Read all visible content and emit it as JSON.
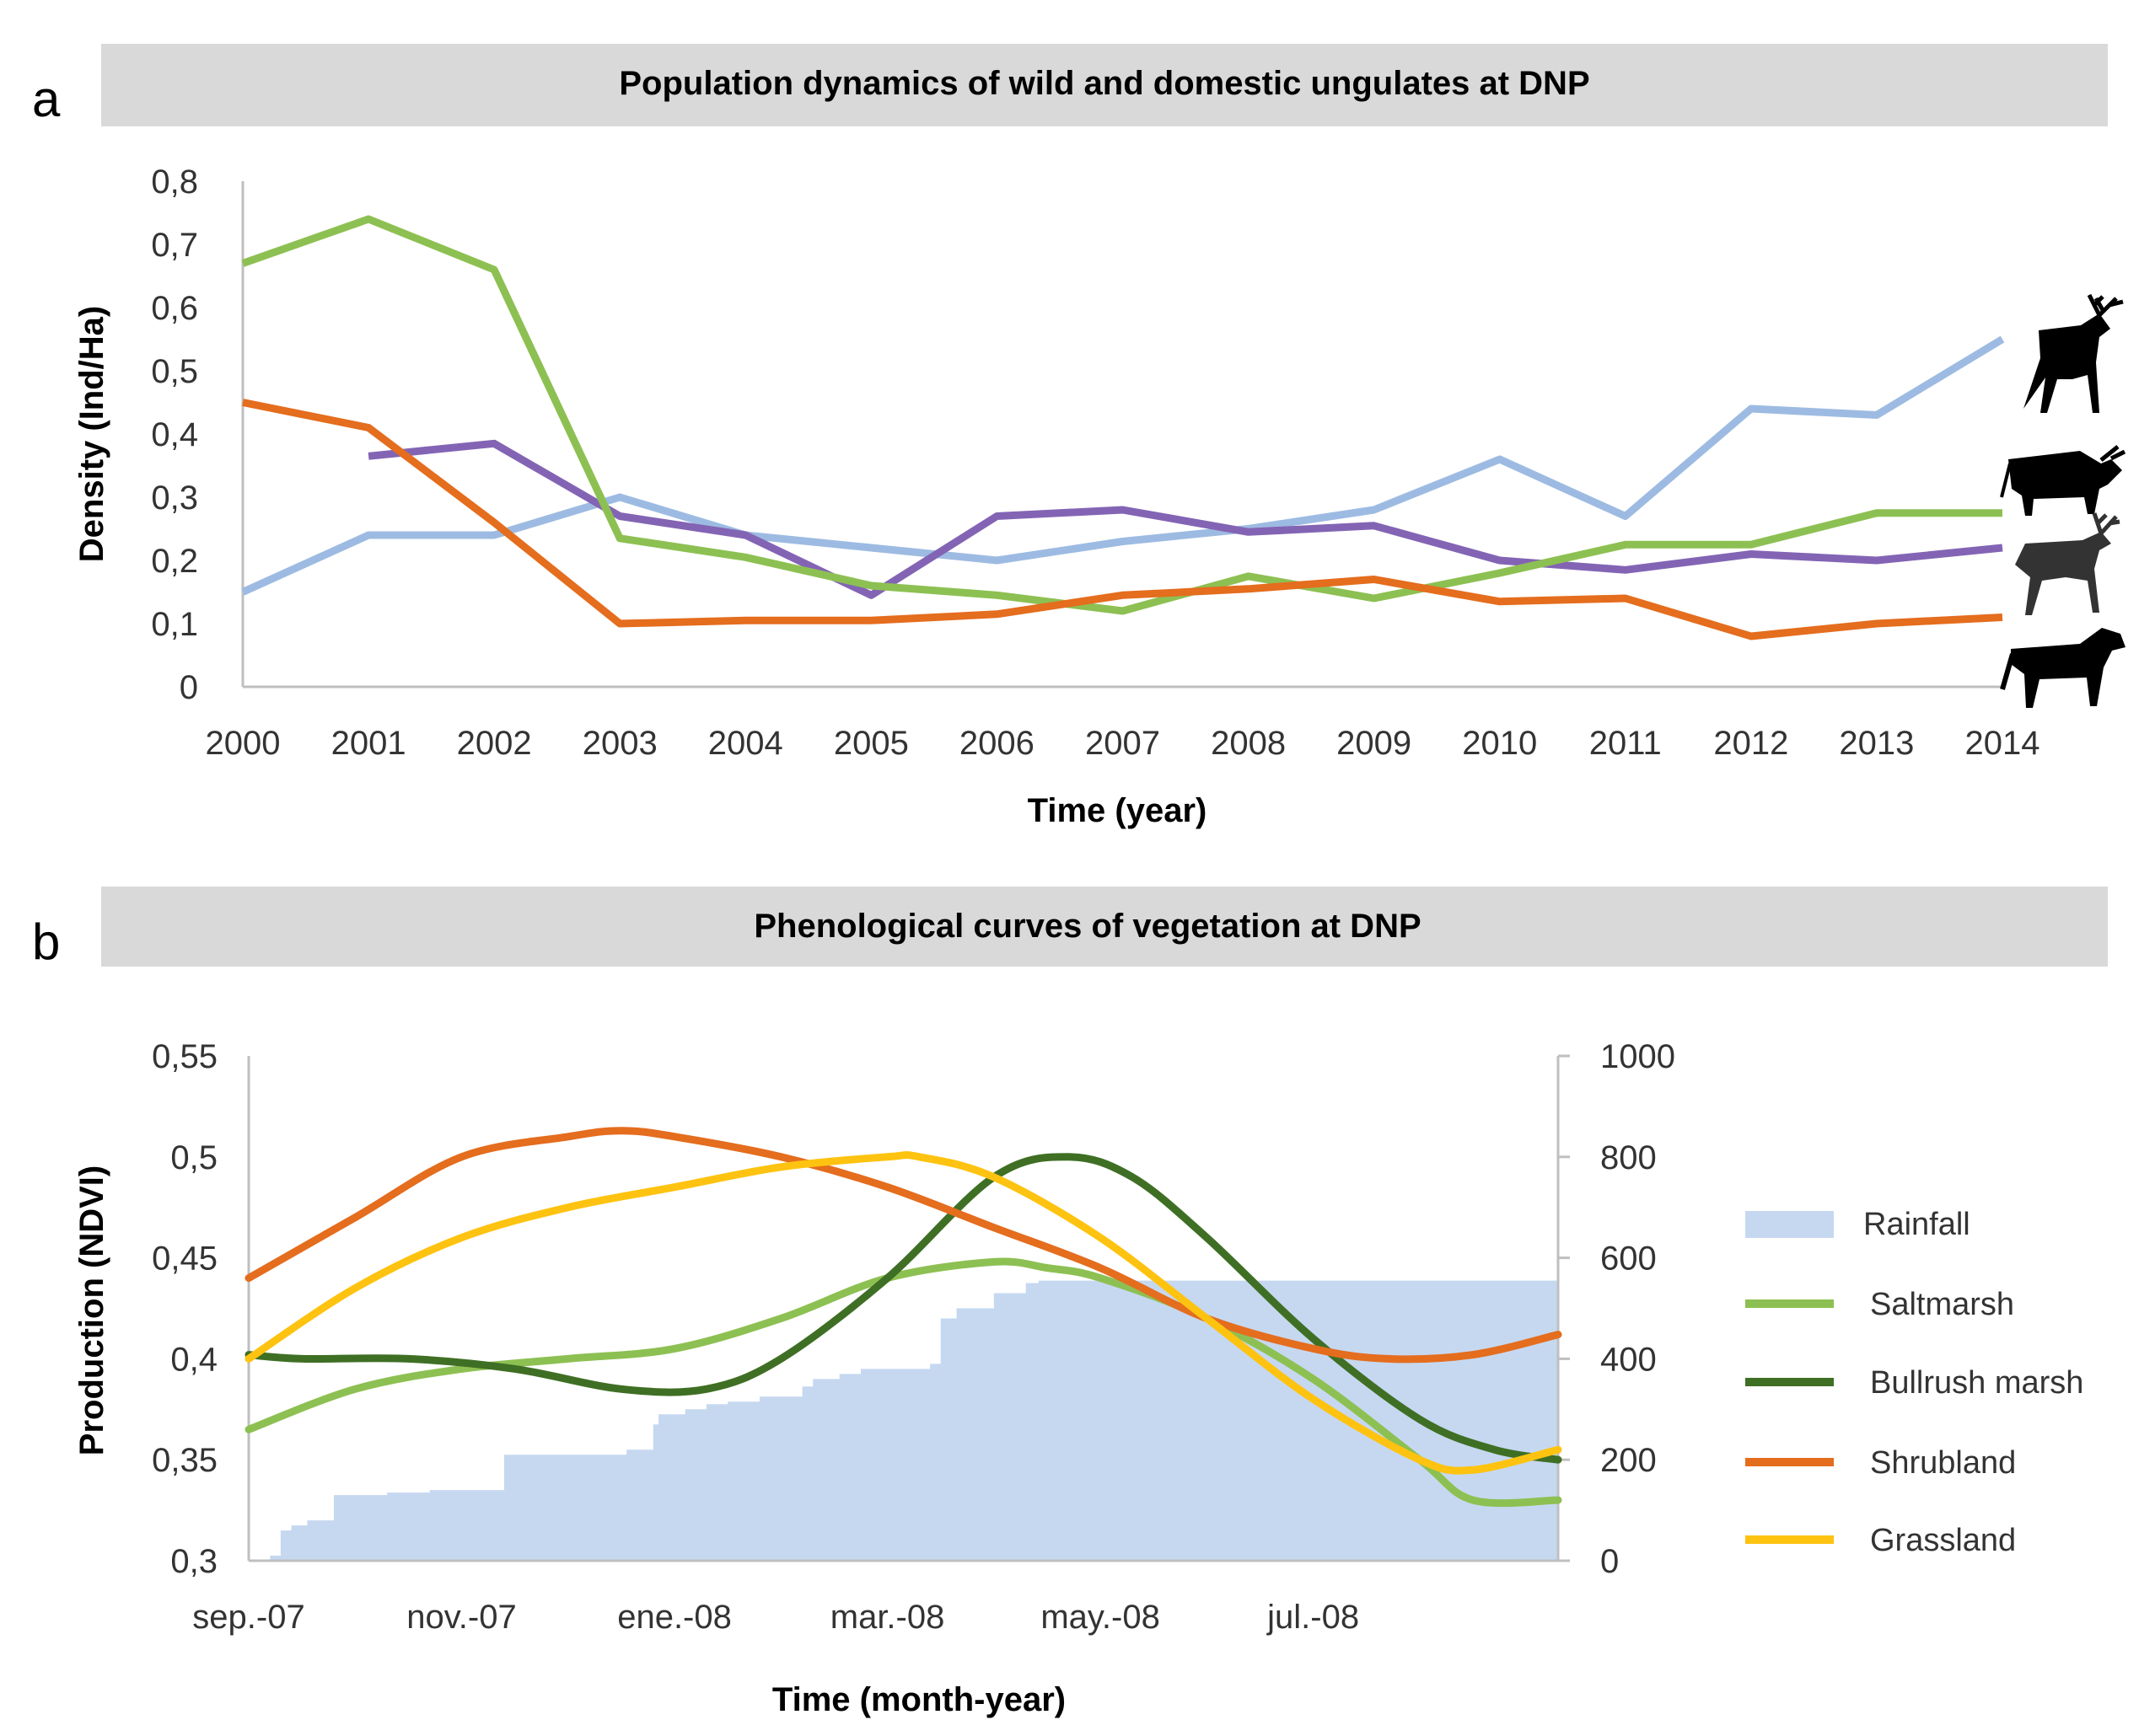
{
  "colors": {
    "light_blue": "#9dbbe2",
    "purple": "#8364b4",
    "green": "#8dc052",
    "orange": "#e46d1e",
    "dark_green": "#3f6f24",
    "yellow": "#fec310",
    "rainfall_fill": "#c6d8f0",
    "title_bar": "#d9d9d9"
  },
  "chart_data": [
    {
      "id": "a",
      "panel_letter": "a",
      "type": "line",
      "title": "Population dynamics of wild and domestic ungulates at DNP",
      "xlabel": "Time (year)",
      "ylabel": "Density (Ind/Ha)",
      "ylim": [
        0,
        0.8
      ],
      "yticks": [
        "0",
        "0,1",
        "0,2",
        "0,3",
        "0,4",
        "0,5",
        "0,6",
        "0,7",
        "0,8"
      ],
      "x": [
        "2000",
        "2001",
        "2002",
        "2003",
        "2004",
        "2005",
        "2006",
        "2007",
        "2008",
        "2009",
        "2010",
        "2011",
        "2012",
        "2013",
        "2014"
      ],
      "series": [
        {
          "name": "red deer",
          "icon": "deer-icon",
          "color_key": "light_blue",
          "values": [
            0.15,
            0.24,
            0.24,
            0.3,
            0.24,
            0.22,
            0.2,
            0.23,
            0.25,
            0.28,
            0.36,
            0.27,
            0.44,
            0.43,
            0.55
          ]
        },
        {
          "name": "cattle",
          "icon": "cattle-icon",
          "color_key": "purple",
          "values": [
            null,
            0.365,
            0.385,
            0.27,
            0.24,
            0.145,
            0.27,
            0.28,
            0.245,
            0.255,
            0.2,
            0.185,
            0.21,
            0.2,
            0.22
          ]
        },
        {
          "name": "fallow deer",
          "icon": "fallow-deer-icon",
          "color_key": "green",
          "values": [
            0.67,
            0.74,
            0.66,
            0.235,
            0.205,
            0.16,
            0.145,
            0.12,
            0.175,
            0.14,
            0.18,
            0.225,
            0.225,
            0.275,
            0.275
          ]
        },
        {
          "name": "horses",
          "icon": "horse-icon",
          "color_key": "orange",
          "values": [
            0.45,
            0.41,
            0.26,
            0.1,
            0.105,
            0.105,
            0.115,
            0.145,
            0.155,
            0.17,
            0.135,
            0.14,
            0.08,
            0.1,
            0.11
          ]
        }
      ]
    },
    {
      "id": "b",
      "panel_letter": "b",
      "type": "line",
      "title": "Phenological curves of vegetation at DNP",
      "xlabel": "Time (month-year)",
      "ylabel": "Production (NDVI)",
      "ylim": [
        0.3,
        0.55
      ],
      "yticks": [
        "0,3",
        "0,35",
        "0,4",
        "0,45",
        "0,5",
        "0,55"
      ],
      "y2lim": [
        0,
        1000
      ],
      "y2ticks": [
        "0",
        "200",
        "400",
        "600",
        "800",
        "1000"
      ],
      "xticks": [
        "sep.-07",
        "nov.-07",
        "ene.-08",
        "mar.-08",
        "may.-08",
        "jul.-08"
      ],
      "xrange_months": [
        0,
        12.3
      ],
      "rainfall": {
        "name": "Rainfall",
        "months": [
          0,
          0.2,
          0.3,
          0.4,
          0.55,
          0.8,
          1.3,
          1.7,
          2.4,
          2.8,
          3.55,
          3.8,
          3.85,
          4.1,
          4.3,
          4.5,
          4.8,
          5.2,
          5.3,
          5.55,
          5.75,
          6.4,
          6.5,
          6.65,
          7.0,
          7.3,
          7.42,
          7.6,
          7.8,
          8.3,
          8.6,
          9.0,
          9.5,
          10.0,
          10.5,
          11.0,
          11.5,
          12.3
        ],
        "values": [
          0,
          10,
          60,
          70,
          80,
          130,
          135,
          140,
          210,
          210,
          220,
          270,
          290,
          300,
          310,
          315,
          325,
          345,
          360,
          370,
          380,
          390,
          480,
          500,
          530,
          550,
          555,
          555,
          555,
          555,
          555,
          555,
          555,
          555,
          555,
          555,
          555,
          555
        ]
      },
      "series": [
        {
          "name": "Saltmarsh",
          "color_key": "green",
          "months": [
            0,
            1,
            2,
            3,
            4,
            5,
            6,
            7,
            7.5,
            8,
            9,
            10,
            11,
            11.5,
            12.3
          ],
          "values": [
            0.365,
            0.385,
            0.395,
            0.4,
            0.405,
            0.42,
            0.44,
            0.448,
            0.445,
            0.44,
            0.42,
            0.39,
            0.35,
            0.33,
            0.33
          ]
        },
        {
          "name": "Bullrush marsh",
          "color_key": "dark_green",
          "months": [
            0,
            0.5,
            1.5,
            2.5,
            3.5,
            4.3,
            5,
            6,
            7,
            7.7,
            8.3,
            9,
            10,
            11,
            11.7,
            12.3
          ],
          "values": [
            0.402,
            0.4,
            0.4,
            0.395,
            0.385,
            0.385,
            0.4,
            0.44,
            0.49,
            0.5,
            0.49,
            0.46,
            0.41,
            0.37,
            0.355,
            0.35
          ]
        },
        {
          "name": "Shrubland",
          "color_key": "orange",
          "months": [
            0,
            1,
            2,
            3,
            3.5,
            4,
            5,
            6,
            7,
            8,
            9,
            10,
            10.7,
            11.5,
            12.3
          ],
          "values": [
            0.44,
            0.47,
            0.5,
            0.51,
            0.513,
            0.51,
            0.5,
            0.485,
            0.465,
            0.445,
            0.42,
            0.405,
            0.4,
            0.402,
            0.412
          ]
        },
        {
          "name": "Grassland",
          "color_key": "yellow",
          "months": [
            0,
            1,
            2,
            3,
            4,
            5,
            6,
            6.3,
            7,
            8,
            9,
            10,
            11,
            11.5,
            12.3
          ],
          "values": [
            0.4,
            0.435,
            0.46,
            0.475,
            0.485,
            0.495,
            0.5,
            0.5,
            0.49,
            0.46,
            0.42,
            0.38,
            0.35,
            0.345,
            0.355
          ]
        }
      ]
    }
  ]
}
